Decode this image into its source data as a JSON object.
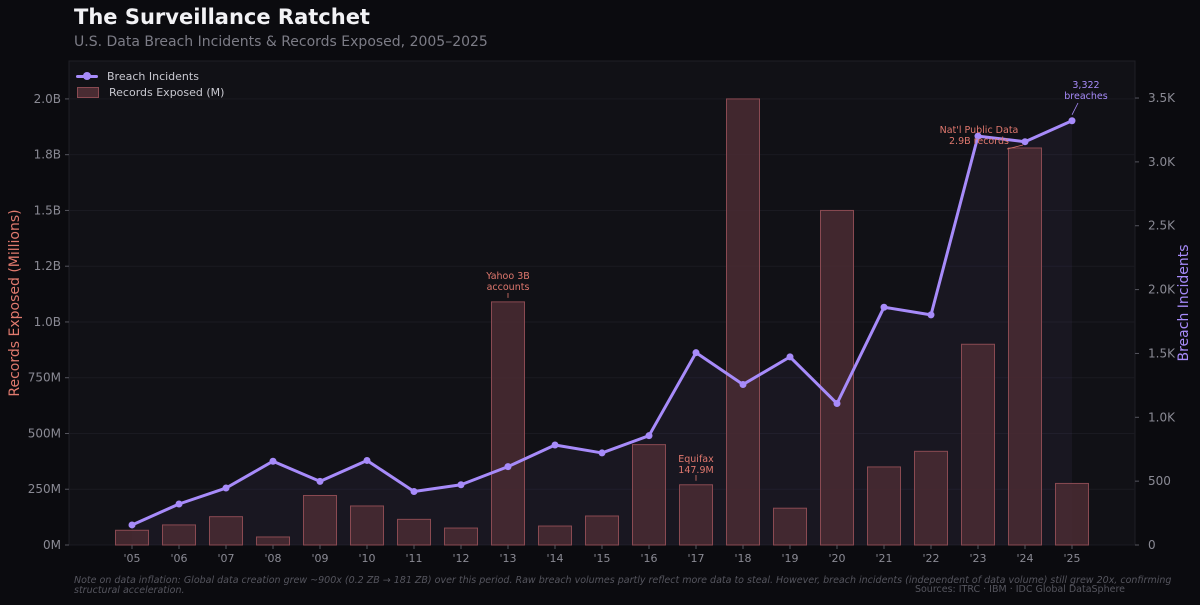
{
  "header": {
    "title": "The Surveillance Ratchet",
    "subtitle": "U.S. Data Breach Incidents & Records Exposed, 2005–2025"
  },
  "legend": {
    "line_label": "Breach Incidents",
    "bar_label": "Records Exposed (M)"
  },
  "footer": {
    "note": "Note on data inflation: Global data creation grew ~900x (0.2 ZB → 181 ZB) over this period. Raw breach volumes partly reflect more data to steal. However, breach incidents (independent of data volume) still grew 20x, confirming structural acceleration.",
    "sources": "Sources: ITRC · IBM · IDC Global DataSphere"
  },
  "colors": {
    "line": "#a78bfa",
    "bar_fill": "#4a2c33",
    "bar_stroke": "#8a4a52",
    "left_axis_label": "#e07a6e",
    "annotation_red": "#e0786e",
    "annotation_purple": "#a78bfa"
  },
  "chart_data": {
    "type": "bar+line",
    "categories": [
      "'05",
      "'06",
      "'07",
      "'08",
      "'09",
      "'10",
      "'11",
      "'12",
      "'13",
      "'14",
      "'15",
      "'16",
      "'17",
      "'18",
      "'19",
      "'20",
      "'21",
      "'22",
      "'23",
      "'24",
      "'25"
    ],
    "series": [
      {
        "name": "Records Exposed (M)",
        "type": "bar",
        "axis": "left",
        "values": [
          66,
          90,
          127,
          36,
          222,
          175,
          115,
          76,
          1090,
          85,
          130,
          450,
          270,
          2000,
          165,
          1500,
          350,
          420,
          900,
          1780,
          276
        ]
      },
      {
        "name": "Breach Incidents",
        "type": "line",
        "axis": "right",
        "values": [
          157,
          321,
          446,
          656,
          498,
          662,
          419,
          472,
          614,
          783,
          721,
          856,
          1506,
          1257,
          1473,
          1108,
          1862,
          1802,
          3202,
          3158,
          3322
        ]
      }
    ],
    "left_axis": {
      "label": "Records Exposed (Millions)",
      "ylim": [
        0,
        2170
      ],
      "ticks": [
        0,
        250,
        500,
        750,
        1000,
        1250,
        1500,
        1750,
        2000
      ],
      "tick_labels": [
        "0M",
        "250M",
        "500M",
        "750M",
        "1.0B",
        "1.2B",
        "1.5B",
        "1.8B",
        "2.0B"
      ]
    },
    "right_axis": {
      "label": "Breach Incidents",
      "ylim": [
        0,
        3790
      ],
      "ticks": [
        0,
        500,
        1000,
        1500,
        2000,
        2500,
        3000,
        3500
      ],
      "tick_labels": [
        "0",
        "500",
        "1.0K",
        "1.5K",
        "2.0K",
        "2.5K",
        "3.0K",
        "3.5K"
      ]
    },
    "annotations": [
      {
        "category": "'13",
        "lines": [
          "Yahoo 3B",
          "accounts"
        ],
        "series": "bar",
        "color": "red"
      },
      {
        "category": "'17",
        "lines": [
          "Equifax",
          "147.9M"
        ],
        "series": "bar",
        "color": "red"
      },
      {
        "category": "'24",
        "lines": [
          "Nat'l Public Data",
          "2.9B records"
        ],
        "series": "bar",
        "color": "red"
      },
      {
        "category": "'25",
        "lines": [
          "3,322",
          "breaches"
        ],
        "series": "line",
        "color": "purple"
      }
    ],
    "legend_position": "top-left",
    "grid": true
  }
}
